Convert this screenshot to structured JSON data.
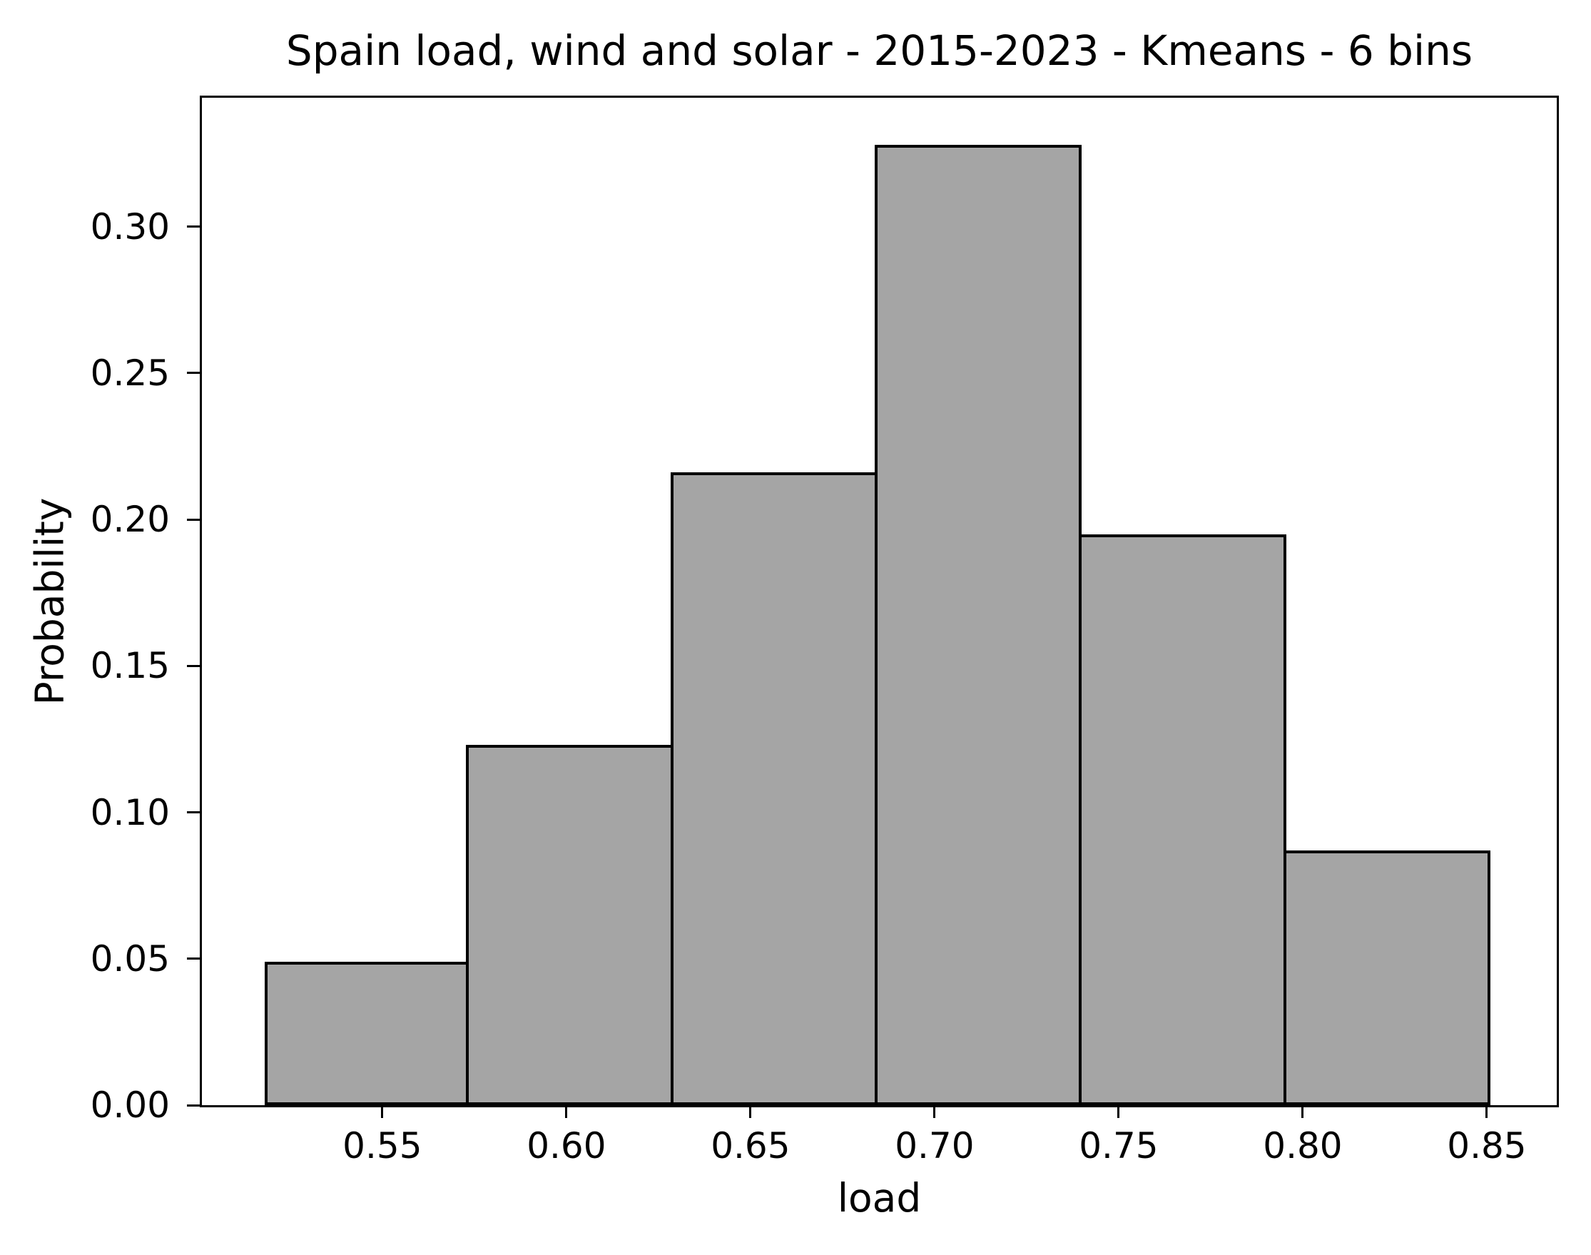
{
  "chart_data": {
    "type": "bar",
    "histogram": true,
    "title": "Spain load, wind and solar - 2015-2023 - Kmeans - 6 bins",
    "xlabel": "load",
    "ylabel": "Probability",
    "bin_edges": [
      0.518,
      0.5735,
      0.629,
      0.6845,
      0.74,
      0.7955,
      0.851
    ],
    "values": [
      0.049,
      0.123,
      0.216,
      0.328,
      0.195,
      0.087
    ],
    "xticks": [
      0.55,
      0.6,
      0.65,
      0.7,
      0.75,
      0.8,
      0.85
    ],
    "xtick_labels": [
      "0.55",
      "0.60",
      "0.65",
      "0.70",
      "0.75",
      "0.80",
      "0.85"
    ],
    "yticks": [
      0.0,
      0.05,
      0.1,
      0.15,
      0.2,
      0.25,
      0.3
    ],
    "ytick_labels": [
      "0.00",
      "0.05",
      "0.10",
      "0.15",
      "0.20",
      "0.25",
      "0.30"
    ],
    "xlim": [
      0.501,
      0.869
    ],
    "ylim": [
      0.0,
      0.344
    ],
    "grid": false,
    "legend": null,
    "colors": {
      "bar_fill": "#a5a5a5",
      "bar_edge": "#000000",
      "axis": "#000000",
      "text": "#000000",
      "background": "#ffffff"
    }
  }
}
